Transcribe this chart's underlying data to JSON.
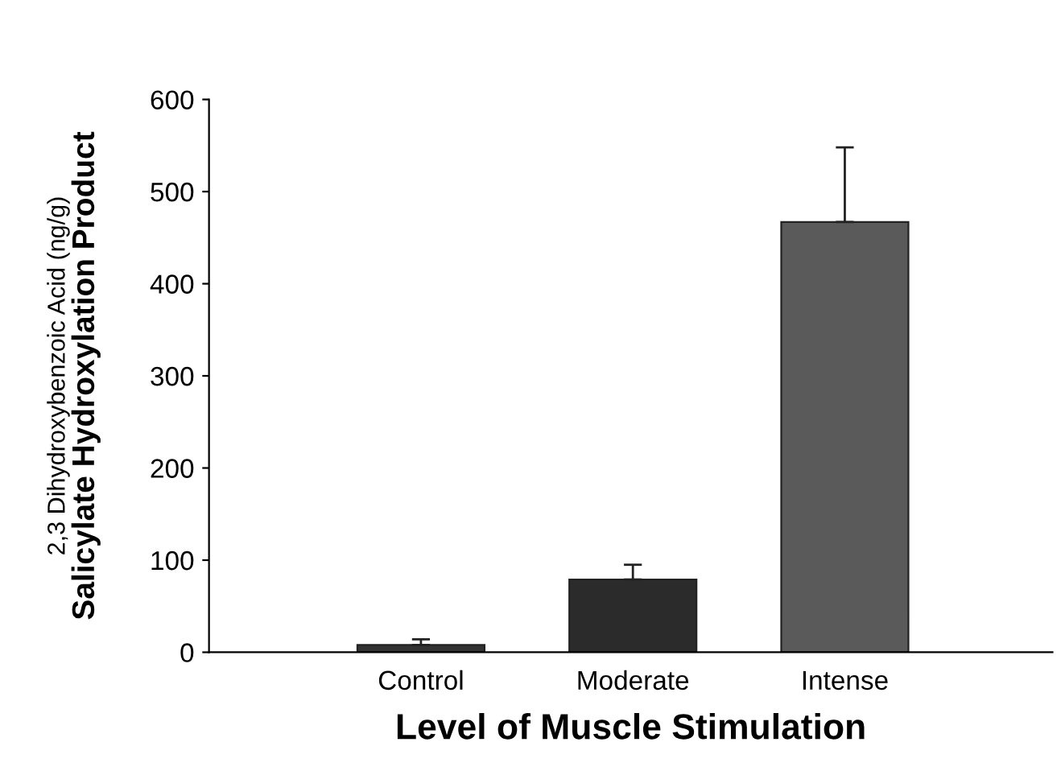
{
  "chart_data": {
    "type": "bar",
    "xlabel": "Level of Muscle Stimulation",
    "ylabel": "Salicylate Hydroxylation Product",
    "annotations": [
      "2,3 Dihydroxybenzoic Acid (ng/g)"
    ],
    "categories": [
      "Control",
      "Moderate",
      "Intense"
    ],
    "values": [
      8,
      79,
      467
    ],
    "errors": [
      6,
      16,
      81
    ],
    "colors": [
      "#333333",
      "#2b2b2b",
      "#5a5a5a"
    ],
    "ylim": [
      0,
      600
    ],
    "yticks": [
      0,
      100,
      200,
      300,
      400,
      500,
      600
    ],
    "grid": false,
    "legend": false
  }
}
